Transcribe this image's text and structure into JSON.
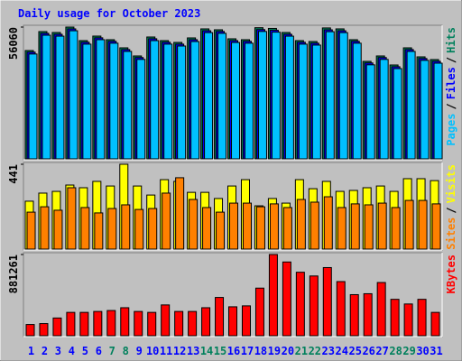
{
  "title": "Daily usage for October 2023",
  "chart_data": [
    {
      "type": "bar",
      "ylim": [
        0,
        56060
      ],
      "yticks": [
        56060
      ],
      "legend_separator": "/",
      "series": [
        {
          "name": "Hits",
          "color": "#00805c",
          "values": [
            46080,
            54144,
            53760,
            56060,
            50304,
            52224,
            50688,
            47232,
            43776,
            51840,
            50304,
            49536,
            51456,
            55296,
            54912,
            51072,
            50688,
            55800,
            55500,
            53760,
            50304,
            49920,
            55700,
            55300,
            50688,
            41472,
            43776,
            39936,
            47232,
            43392,
            42240
          ]
        },
        {
          "name": "Files",
          "color": "#0000ff",
          "values": [
            45400,
            53400,
            53000,
            55300,
            49600,
            51500,
            50000,
            46500,
            43100,
            51100,
            49600,
            48800,
            50700,
            54500,
            54200,
            50300,
            50000,
            55000,
            54700,
            53000,
            49600,
            49200,
            54900,
            54500,
            50000,
            40800,
            43100,
            39200,
            46500,
            42700,
            41500
          ]
        },
        {
          "name": "Pages",
          "color": "#00c0ff",
          "values": [
            44600,
            52600,
            52200,
            54500,
            48800,
            50700,
            49200,
            45700,
            42300,
            50300,
            48800,
            48000,
            49900,
            53700,
            53400,
            49500,
            49200,
            54200,
            53900,
            52200,
            48800,
            48400,
            54100,
            53700,
            49200,
            40000,
            42300,
            38400,
            45700,
            41900,
            40700
          ]
        }
      ]
    },
    {
      "type": "bar",
      "ylim": [
        0,
        441
      ],
      "yticks": [
        441
      ],
      "legend_separator": "/",
      "series": [
        {
          "name": "Visits",
          "color": "#ffff00",
          "values": [
            249,
            291,
            300,
            333,
            319,
            352,
            328,
            441,
            328,
            281,
            361,
            352,
            295,
            295,
            263,
            328,
            361,
            225,
            263,
            239,
            361,
            314,
            352,
            300,
            305,
            319,
            328,
            300,
            366,
            366,
            356
          ]
        },
        {
          "name": "Sites",
          "color": "#ff8000",
          "values": [
            192,
            220,
            202,
            319,
            216,
            188,
            211,
            230,
            206,
            211,
            291,
            371,
            258,
            216,
            192,
            239,
            239,
            220,
            235,
            216,
            258,
            244,
            272,
            216,
            235,
            230,
            239,
            216,
            253,
            253,
            235
          ]
        }
      ]
    },
    {
      "type": "bar",
      "ylim": [
        0,
        881261
      ],
      "yticks": [
        881261
      ],
      "categories": [
        "1",
        "2",
        "3",
        "4",
        "5",
        "6",
        "7",
        "8",
        "9",
        "10",
        "11",
        "12",
        "13",
        "14",
        "15",
        "16",
        "17",
        "18",
        "19",
        "20",
        "21",
        "22",
        "23",
        "24",
        "25",
        "26",
        "27",
        "28",
        "29",
        "30",
        "31"
      ],
      "category_colors": [
        "#0000ff",
        "#0000ff",
        "#0000ff",
        "#0000ff",
        "#0000ff",
        "#0000ff",
        "#00805c",
        "#00805c",
        "#0000ff",
        "#0000ff",
        "#0000ff",
        "#0000ff",
        "#0000ff",
        "#00805c",
        "#00805c",
        "#0000ff",
        "#0000ff",
        "#0000ff",
        "#0000ff",
        "#0000ff",
        "#00805c",
        "#00805c",
        "#0000ff",
        "#0000ff",
        "#0000ff",
        "#0000ff",
        "#0000ff",
        "#00805c",
        "#00805c",
        "#0000ff",
        "#0000ff"
      ],
      "series": [
        {
          "name": "KBytes",
          "color": "#ff0000",
          "values": [
            121560,
            131690,
            192470,
            253250,
            253250,
            263380,
            273510,
            303900,
            263380,
            253250,
            334290,
            263380,
            263380,
            303900,
            415330,
            314030,
            324160,
            516630,
            881261,
            800270,
            688840,
            648320,
            739490,
            587540,
            445720,
            455850,
            577410,
            395070,
            344420,
            395070,
            253250
          ]
        }
      ]
    }
  ]
}
